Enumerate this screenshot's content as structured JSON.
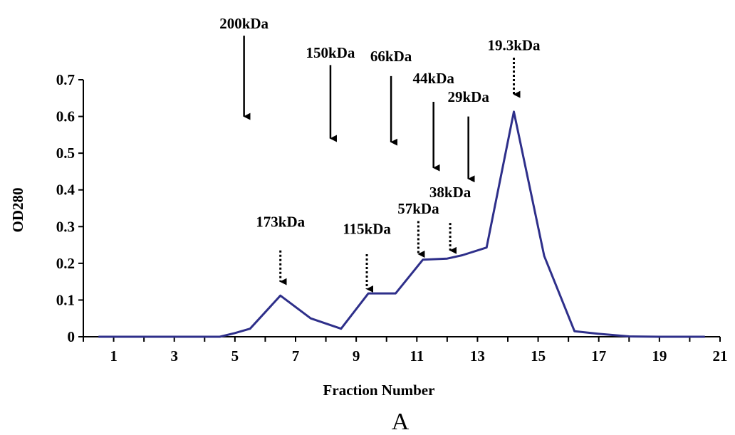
{
  "chart_data": {
    "type": "line",
    "ylabel": "OD280",
    "xlabel": "Fraction Number",
    "panel_label": "A",
    "xlim": [
      0,
      21
    ],
    "ylim": [
      0,
      0.7
    ],
    "x_ticks": [
      1,
      3,
      5,
      7,
      9,
      11,
      13,
      15,
      17,
      19,
      21
    ],
    "y_ticks": [
      0,
      0.1,
      0.2,
      0.3,
      0.4,
      0.5,
      0.6,
      0.7
    ],
    "y_tick_labels": [
      "0",
      "0.1",
      "0.2",
      "0.3",
      "0.4",
      "0.5",
      "0.6",
      "0.7"
    ],
    "line_color": "#2e2f8a",
    "series": [
      {
        "x": [
          0.5,
          4.5,
          5.0,
          5.5,
          6.5,
          7.5,
          8.5,
          9.4,
          9.7,
          10.3,
          11.2,
          12.0,
          12.5,
          13.3,
          14.2,
          15.2,
          16.2,
          17.0,
          18.0,
          19.0,
          20.5
        ],
        "y": [
          0,
          0,
          0.01,
          0.022,
          0.112,
          0.05,
          0.022,
          0.118,
          0.118,
          0.118,
          0.21,
          0.213,
          0.222,
          0.243,
          0.613,
          0.22,
          0.015,
          0.008,
          0.001,
          0,
          0
        ]
      }
    ],
    "annotations": [
      {
        "label": "200kDa",
        "x": 5.3,
        "style": "solid",
        "tip_y": 0.6,
        "tail_y": 0.82,
        "label_y": 0.84
      },
      {
        "label": "150kDa",
        "x": 8.15,
        "style": "solid",
        "tip_y": 0.54,
        "tail_y": 0.74,
        "label_y": 0.76
      },
      {
        "label": "66kDa",
        "x": 10.15,
        "style": "solid",
        "tip_y": 0.53,
        "tail_y": 0.71,
        "label_y": 0.75
      },
      {
        "label": "44kDa",
        "x": 11.55,
        "style": "solid",
        "tip_y": 0.46,
        "tail_y": 0.64,
        "label_y": 0.69
      },
      {
        "label": "29kDa",
        "x": 12.7,
        "style": "solid",
        "tip_y": 0.43,
        "tail_y": 0.6,
        "label_y": 0.64
      },
      {
        "label": "19.3kDa",
        "x": 14.2,
        "style": "dotted",
        "tip_y": 0.66,
        "tail_y": 0.76,
        "label_y": 0.78
      },
      {
        "label": "173kDa",
        "x": 6.5,
        "style": "dotted",
        "tip_y": 0.15,
        "tail_y": 0.235,
        "label_y": 0.3
      },
      {
        "label": "115kDa",
        "x": 9.35,
        "style": "dotted",
        "tip_y": 0.13,
        "tail_y": 0.225,
        "label_y": 0.28
      },
      {
        "label": "57kDa",
        "x": 11.05,
        "style": "dotted",
        "tip_y": 0.225,
        "tail_y": 0.315,
        "label_y": 0.335
      },
      {
        "label": "38kDa",
        "x": 12.1,
        "style": "dotted",
        "tip_y": 0.235,
        "tail_y": 0.31,
        "label_y": 0.38
      }
    ]
  }
}
